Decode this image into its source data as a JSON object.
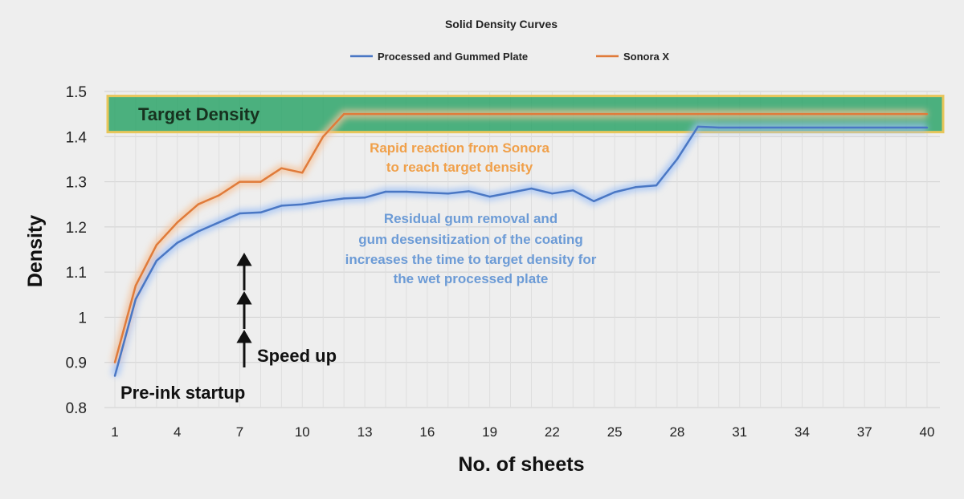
{
  "chart_data": {
    "type": "line",
    "title": "Solid Density Curves",
    "xlabel": "No. of sheets",
    "ylabel": "Density",
    "xlim": [
      1,
      40
    ],
    "ylim": [
      0.8,
      1.5
    ],
    "x_ticks": [
      1,
      4,
      7,
      10,
      13,
      16,
      19,
      22,
      25,
      28,
      31,
      34,
      37,
      40
    ],
    "y_ticks": [
      0.8,
      0.9,
      1,
      1.1,
      1.2,
      1.3,
      1.4,
      1.5
    ],
    "y_tick_labels": [
      "0.8",
      "0.9",
      "1",
      "1.1",
      "1.2",
      "1.3",
      "1.4",
      "1.5"
    ],
    "grid": true,
    "legend_position": "top-center",
    "target_band": {
      "label": "Target Density",
      "y_min": 1.41,
      "y_max": 1.49,
      "x_min": 1,
      "x_max": 40,
      "color": "#2ea56a"
    },
    "colors": {
      "blue": "#4a77c4",
      "orange": "#e07b3a",
      "band_border": "#e8c65a"
    },
    "series": [
      {
        "name": "Processed and Gummed Plate",
        "color": "#4a77c4",
        "x": [
          1,
          2,
          3,
          4,
          5,
          6,
          7,
          8,
          9,
          10,
          11,
          12,
          13,
          14,
          15,
          16,
          17,
          18,
          19,
          20,
          21,
          22,
          23,
          24,
          25,
          26,
          27,
          28,
          29,
          30,
          31,
          32,
          33,
          34,
          35,
          36,
          37,
          38,
          39,
          40
        ],
        "values": [
          0.87,
          1.04,
          1.125,
          1.165,
          1.19,
          1.21,
          1.23,
          1.232,
          1.247,
          1.25,
          1.257,
          1.263,
          1.265,
          1.278,
          1.278,
          1.276,
          1.274,
          1.279,
          1.267,
          1.276,
          1.285,
          1.274,
          1.281,
          1.257,
          1.277,
          1.288,
          1.292,
          1.35,
          1.422,
          1.42,
          1.42,
          1.42,
          1.42,
          1.42,
          1.42,
          1.42,
          1.42,
          1.42,
          1.42,
          1.42
        ]
      },
      {
        "name": "Sonora X",
        "color": "#e07b3a",
        "x": [
          1,
          2,
          3,
          4,
          5,
          6,
          7,
          8,
          9,
          10,
          11,
          12,
          13,
          14,
          15,
          16,
          17,
          18,
          19,
          20,
          21,
          22,
          23,
          24,
          25,
          26,
          27,
          28,
          29,
          30,
          31,
          32,
          33,
          34,
          35,
          36,
          37,
          38,
          39,
          40
        ],
        "values": [
          0.9,
          1.07,
          1.16,
          1.21,
          1.25,
          1.27,
          1.3,
          1.3,
          1.33,
          1.32,
          1.4,
          1.45,
          1.45,
          1.45,
          1.45,
          1.45,
          1.45,
          1.45,
          1.45,
          1.45,
          1.45,
          1.45,
          1.45,
          1.45,
          1.45,
          1.45,
          1.45,
          1.45,
          1.45,
          1.45,
          1.45,
          1.45,
          1.45,
          1.45,
          1.45,
          1.45,
          1.45,
          1.45,
          1.45,
          1.45
        ]
      }
    ],
    "annotations": {
      "target_label": "Target Density",
      "orange_line1": "Rapid reaction from Sonora",
      "orange_line2": "to reach target density",
      "blue_line1": "Residual gum removal and",
      "blue_line2": "gum desensitization of the coating",
      "blue_line3": "increases the time to target density for",
      "blue_line4": "the wet processed plate",
      "speed_up": "Speed up",
      "pre_ink": "Pre-ink startup"
    }
  }
}
